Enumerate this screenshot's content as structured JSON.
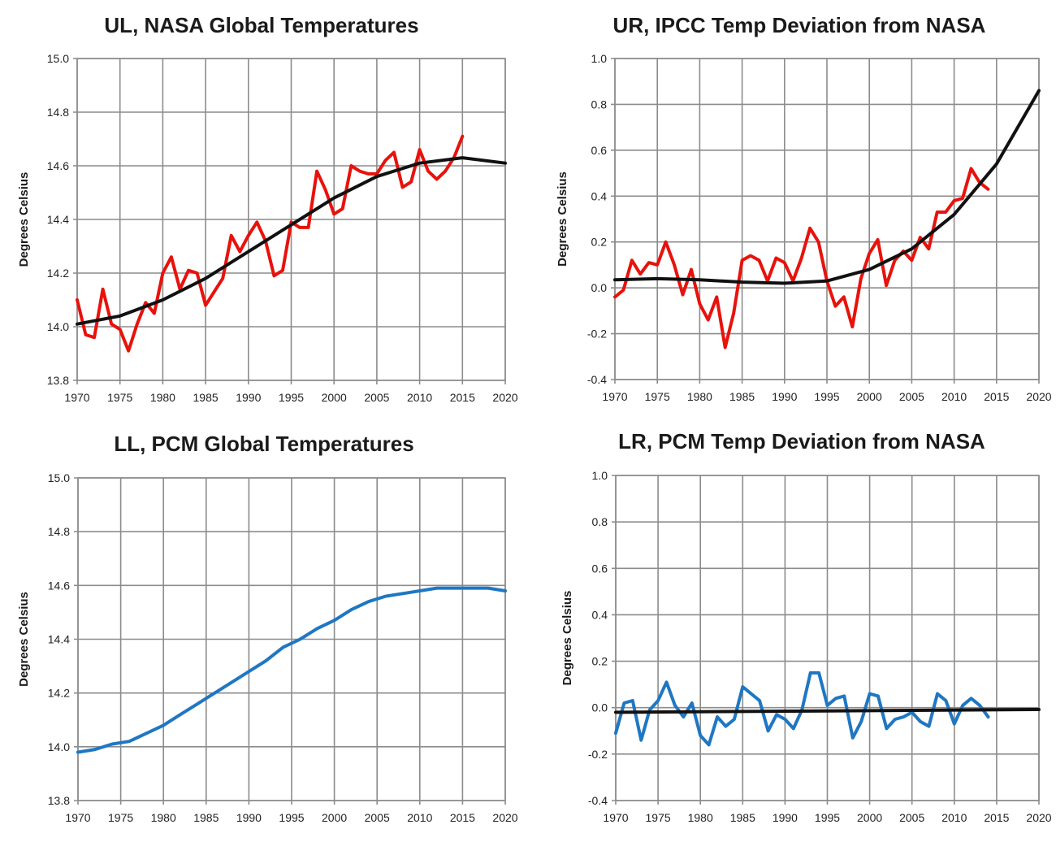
{
  "chart_data": [
    {
      "id": "ul",
      "type": "line",
      "title": "UL, NASA Global Temperatures",
      "ylabel": "Degrees Celsius",
      "xlim": [
        1970,
        2020
      ],
      "ylim": [
        13.8,
        15.0
      ],
      "x_ticks": [
        "1970",
        "1975",
        "1980",
        "1985",
        "1990",
        "1995",
        "2000",
        "2005",
        "2010",
        "2015",
        "2020"
      ],
      "y_ticks": [
        "13.8",
        "14.0",
        "14.2",
        "14.4",
        "14.6",
        "14.8",
        "15.0"
      ],
      "grid": true,
      "series": [
        {
          "color": "#e8120c",
          "width": 4,
          "x": [
            1970,
            1971,
            1972,
            1973,
            1974,
            1975,
            1976,
            1977,
            1978,
            1979,
            1980,
            1981,
            1982,
            1983,
            1984,
            1985,
            1986,
            1987,
            1988,
            1989,
            1990,
            1991,
            1992,
            1993,
            1994,
            1995,
            1996,
            1997,
            1998,
            1999,
            2000,
            2001,
            2002,
            2003,
            2004,
            2005,
            2006,
            2007,
            2008,
            2009,
            2010,
            2011,
            2012,
            2013,
            2014,
            2015
          ],
          "y": [
            14.1,
            13.97,
            13.96,
            14.14,
            14.01,
            13.99,
            13.91,
            14.01,
            14.09,
            14.05,
            14.2,
            14.26,
            14.14,
            14.21,
            14.2,
            14.08,
            14.13,
            14.18,
            14.34,
            14.28,
            14.34,
            14.39,
            14.32,
            14.19,
            14.21,
            14.39,
            14.37,
            14.37,
            14.58,
            14.51,
            14.42,
            14.44,
            14.6,
            14.58,
            14.57,
            14.57,
            14.62,
            14.65,
            14.52,
            14.54,
            14.66,
            14.58,
            14.55,
            14.58,
            14.63,
            14.71
          ]
        },
        {
          "color": "#111111",
          "width": 4,
          "x": [
            1970,
            1975,
            1980,
            1985,
            1990,
            1995,
            2000,
            2005,
            2010,
            2015,
            2020
          ],
          "y": [
            14.01,
            14.04,
            14.1,
            14.18,
            14.28,
            14.38,
            14.48,
            14.56,
            14.61,
            14.63,
            14.61
          ]
        }
      ]
    },
    {
      "id": "ur",
      "type": "line",
      "title": "UR, IPCC Temp Deviation from NASA",
      "ylabel": "Degrees Celsius",
      "xlim": [
        1970,
        2020
      ],
      "ylim": [
        -0.4,
        1.0
      ],
      "x_ticks": [
        "1970",
        "1975",
        "1980",
        "1985",
        "1990",
        "1995",
        "2000",
        "2005",
        "2010",
        "2015",
        "2020"
      ],
      "y_ticks": [
        "-0.4",
        "-0.2",
        "0.0",
        "0.2",
        "0.4",
        "0.6",
        "0.8",
        "1.0"
      ],
      "grid": true,
      "series": [
        {
          "color": "#e8120c",
          "width": 4,
          "x": [
            1970,
            1971,
            1972,
            1973,
            1974,
            1975,
            1976,
            1977,
            1978,
            1979,
            1980,
            1981,
            1982,
            1983,
            1984,
            1985,
            1986,
            1987,
            1988,
            1989,
            1990,
            1991,
            1992,
            1993,
            1994,
            1995,
            1996,
            1997,
            1998,
            1999,
            2000,
            2001,
            2002,
            2003,
            2004,
            2005,
            2006,
            2007,
            2008,
            2009,
            2010,
            2011,
            2012,
            2013,
            2014
          ],
          "y": [
            -0.04,
            -0.01,
            0.12,
            0.06,
            0.11,
            0.1,
            0.2,
            0.1,
            -0.03,
            0.08,
            -0.07,
            -0.14,
            -0.04,
            -0.26,
            -0.11,
            0.12,
            0.14,
            0.12,
            0.03,
            0.13,
            0.11,
            0.03,
            0.13,
            0.26,
            0.2,
            0.03,
            -0.08,
            -0.04,
            -0.17,
            0.04,
            0.15,
            0.21,
            0.01,
            0.12,
            0.16,
            0.12,
            0.22,
            0.17,
            0.33,
            0.33,
            0.38,
            0.39,
            0.52,
            0.46,
            0.43
          ]
        },
        {
          "color": "#111111",
          "width": 4,
          "x": [
            1970,
            1975,
            1980,
            1985,
            1990,
            1995,
            2000,
            2005,
            2010,
            2015,
            2020
          ],
          "y": [
            0.035,
            0.04,
            0.035,
            0.025,
            0.02,
            0.03,
            0.08,
            0.17,
            0.32,
            0.54,
            0.86
          ]
        }
      ]
    },
    {
      "id": "ll",
      "type": "line",
      "title": "LL, PCM Global Temperatures",
      "ylabel": "Degrees Celsius",
      "xlim": [
        1970,
        2020
      ],
      "ylim": [
        13.8,
        15.0
      ],
      "x_ticks": [
        "1970",
        "1975",
        "1980",
        "1985",
        "1990",
        "1995",
        "2000",
        "2005",
        "2010",
        "2015",
        "2020"
      ],
      "y_ticks": [
        "13.8",
        "14.0",
        "14.2",
        "14.4",
        "14.6",
        "14.8",
        "15.0"
      ],
      "grid": true,
      "series": [
        {
          "color": "#1f77c2",
          "width": 4,
          "x": [
            1970,
            1972,
            1974,
            1976,
            1978,
            1980,
            1982,
            1984,
            1986,
            1988,
            1990,
            1992,
            1994,
            1996,
            1998,
            2000,
            2002,
            2004,
            2006,
            2008,
            2010,
            2012,
            2014,
            2016,
            2018,
            2020
          ],
          "y": [
            13.98,
            13.99,
            14.01,
            14.02,
            14.05,
            14.08,
            14.12,
            14.16,
            14.2,
            14.24,
            14.28,
            14.32,
            14.37,
            14.4,
            14.44,
            14.47,
            14.51,
            14.54,
            14.56,
            14.57,
            14.58,
            14.59,
            14.59,
            14.59,
            14.59,
            14.58
          ]
        }
      ]
    },
    {
      "id": "lr",
      "type": "line",
      "title": "LR, PCM Temp Deviation from NASA",
      "ylabel": "Degrees Celsius",
      "xlim": [
        1970,
        2020
      ],
      "ylim": [
        -0.4,
        1.0
      ],
      "x_ticks": [
        "1970",
        "1975",
        "1980",
        "1985",
        "1990",
        "1995",
        "2000",
        "2005",
        "2010",
        "2015",
        "2020"
      ],
      "y_ticks": [
        "-0.4",
        "-0.2",
        "0.0",
        "0.2",
        "0.4",
        "0.6",
        "0.8",
        "1.0"
      ],
      "grid": true,
      "series": [
        {
          "color": "#1f77c2",
          "width": 4,
          "x": [
            1970,
            1971,
            1972,
            1973,
            1974,
            1975,
            1976,
            1977,
            1978,
            1979,
            1980,
            1981,
            1982,
            1983,
            1984,
            1985,
            1986,
            1987,
            1988,
            1989,
            1990,
            1991,
            1992,
            1993,
            1994,
            1995,
            1996,
            1997,
            1998,
            1999,
            2000,
            2001,
            2002,
            2003,
            2004,
            2005,
            2006,
            2007,
            2008,
            2009,
            2010,
            2011,
            2012,
            2013,
            2014
          ],
          "y": [
            -0.11,
            0.02,
            0.03,
            -0.14,
            -0.01,
            0.03,
            0.11,
            0.01,
            -0.04,
            0.02,
            -0.12,
            -0.16,
            -0.04,
            -0.08,
            -0.05,
            0.09,
            0.06,
            0.03,
            -0.1,
            -0.03,
            -0.05,
            -0.09,
            -0.01,
            0.15,
            0.15,
            0.01,
            0.04,
            0.05,
            -0.13,
            -0.06,
            0.06,
            0.05,
            -0.09,
            -0.05,
            -0.04,
            -0.02,
            -0.06,
            -0.08,
            0.06,
            0.03,
            -0.07,
            0.01,
            0.04,
            0.01,
            -0.04
          ]
        },
        {
          "color": "#111111",
          "width": 4,
          "x": [
            1970,
            2020
          ],
          "y": [
            -0.02,
            -0.008
          ]
        }
      ]
    }
  ]
}
